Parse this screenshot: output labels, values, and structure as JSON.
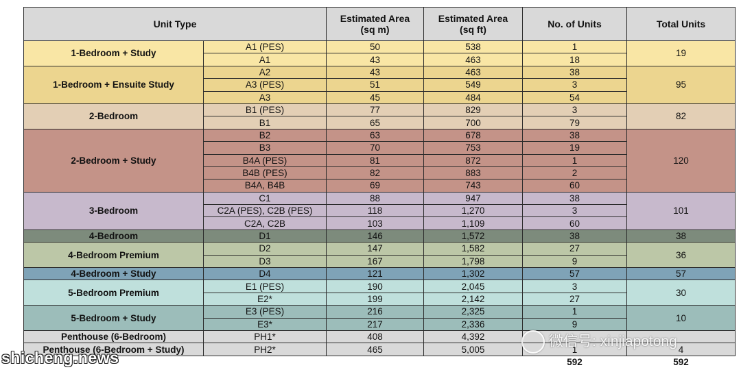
{
  "headers": {
    "unit_type": "Unit Type",
    "area_sqm": "Estimated Area\n(sq m)",
    "area_sqft": "Estimated  Area\n(sq ft)",
    "num_units": "No. of Units",
    "total_units": "Total Units"
  },
  "colors": {
    "header": "#d9d9d9",
    "1-bedroom-study": "#f9e6a5",
    "1-bedroom-ensuite": "#ecd58f",
    "2-bedroom": "#e3cfb5",
    "2-bedroom-study": "#c49388",
    "3-bedroom": "#c7b9cc",
    "4-bedroom": "#7d8b7c",
    "4-bedroom-premium": "#bcc7a7",
    "4-bedroom-study": "#7fa3b7",
    "5-bedroom-premium": "#bfe0dc",
    "5-bedroom-study": "#9cbdba",
    "penthouse": "#d9d9d9"
  },
  "groups": [
    {
      "type": "1-Bedroom + Study",
      "total": "19",
      "color": "#f9e6a5",
      "rows": [
        {
          "code": "A1 (PES)",
          "sqm": "50",
          "sqft": "538",
          "units": "1"
        },
        {
          "code": "A1",
          "sqm": "43",
          "sqft": "463",
          "units": "18"
        }
      ]
    },
    {
      "type": "1-Bedroom + Ensuite Study",
      "total": "95",
      "color": "#ecd58f",
      "rows": [
        {
          "code": "A2",
          "sqm": "43",
          "sqft": "463",
          "units": "38"
        },
        {
          "code": "A3 (PES)",
          "sqm": "51",
          "sqft": "549",
          "units": "3"
        },
        {
          "code": "A3",
          "sqm": "45",
          "sqft": "484",
          "units": "54"
        }
      ]
    },
    {
      "type": "2-Bedroom",
      "total": "82",
      "color": "#e3cfb5",
      "rows": [
        {
          "code": "B1 (PES)",
          "sqm": "77",
          "sqft": "829",
          "units": "3"
        },
        {
          "code": "B1",
          "sqm": "65",
          "sqft": "700",
          "units": "79"
        }
      ]
    },
    {
      "type": "2-Bedroom + Study",
      "total": "120",
      "color": "#c49388",
      "rows": [
        {
          "code": "B2",
          "sqm": "63",
          "sqft": "678",
          "units": "38"
        },
        {
          "code": "B3",
          "sqm": "70",
          "sqft": "753",
          "units": "19"
        },
        {
          "code": "B4A (PES)",
          "sqm": "81",
          "sqft": "872",
          "units": "1"
        },
        {
          "code": "B4B (PES)",
          "sqm": "82",
          "sqft": "883",
          "units": "2"
        },
        {
          "code": "B4A, B4B",
          "sqm": "69",
          "sqft": "743",
          "units": "60"
        }
      ]
    },
    {
      "type": "3-Bedroom",
      "total": "101",
      "color": "#c7b9cc",
      "rows": [
        {
          "code": "C1",
          "sqm": "88",
          "sqft": "947",
          "units": "38"
        },
        {
          "code": "C2A (PES), C2B (PES)",
          "sqm": "118",
          "sqft": "1,270",
          "units": "3"
        },
        {
          "code": "C2A, C2B",
          "sqm": "103",
          "sqft": "1,109",
          "units": "60"
        }
      ]
    },
    {
      "type": "4-Bedroom",
      "total": "38",
      "color": "#7d8b7c",
      "rows": [
        {
          "code": "D1",
          "sqm": "146",
          "sqft": "1,572",
          "units": "38"
        }
      ]
    },
    {
      "type": "4-Bedroom Premium",
      "total": "36",
      "color": "#bcc7a7",
      "rows": [
        {
          "code": "D2",
          "sqm": "147",
          "sqft": "1,582",
          "units": "27"
        },
        {
          "code": "D3",
          "sqm": "167",
          "sqft": "1,798",
          "units": "9"
        }
      ]
    },
    {
      "type": "4-Bedroom + Study",
      "total": "57",
      "color": "#7fa3b7",
      "rows": [
        {
          "code": "D4",
          "sqm": "121",
          "sqft": "1,302",
          "units": "57"
        }
      ]
    },
    {
      "type": "5-Bedroom Premium",
      "total": "30",
      "color": "#bfe0dc",
      "rows": [
        {
          "code": "E1 (PES)",
          "sqm": "190",
          "sqft": "2,045",
          "units": "3"
        },
        {
          "code": "E2*",
          "sqm": "199",
          "sqft": "2,142",
          "units": "27"
        }
      ]
    },
    {
      "type": "5-Bedroom + Study",
      "total": "10",
      "color": "#9cbdba",
      "rows": [
        {
          "code": "E3 (PES)",
          "sqm": "216",
          "sqft": "2,325",
          "units": "1"
        },
        {
          "code": "E3*",
          "sqm": "217",
          "sqft": "2,336",
          "units": "9"
        }
      ]
    },
    {
      "type": "Penthouse (6-Bedroom)",
      "total": "",
      "color": "#d9d9d9",
      "rows": [
        {
          "code": "PH1*",
          "sqm": "408",
          "sqft": "4,392",
          "units": ""
        }
      ]
    },
    {
      "type": "Penthouse (6-Bedroom + Study)",
      "total": "4",
      "color": "#d9d9d9",
      "rows": [
        {
          "code": "PH2*",
          "sqm": "465",
          "sqft": "5,005",
          "units": "1"
        }
      ]
    }
  ],
  "footer": {
    "units_sum": "592",
    "total_sum": "592"
  },
  "watermark": {
    "icon": "wechat-icon",
    "text": "微信号: xinjiapotong"
  },
  "site_logo": "shicheng.news"
}
